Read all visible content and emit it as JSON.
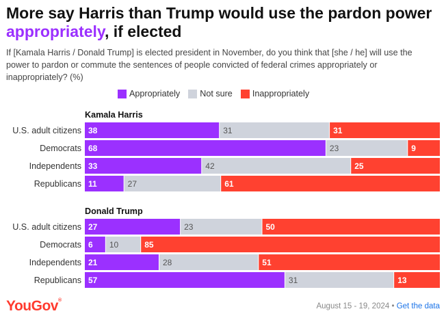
{
  "title": {
    "part1": "More say Harris than Trump would use the pardon power ",
    "highlight": "appropriately",
    "part2": ", if elected"
  },
  "subtitle": "If [Kamala Harris / Donald Trump] is elected president in November, do you think that [she / he] will use the power to pardon or commute the sentences of people convicted of federal crimes appropriately or inappropriately? (%)",
  "footer": {
    "brand": "YouGov",
    "date": "August 15 - 19, 2024",
    "separator": "•",
    "link": "Get the data"
  },
  "chart_data": {
    "type": "bar",
    "orientation": "horizontal",
    "stacked": true,
    "legend": [
      "Appropriately",
      "Not sure",
      "Inappropriately"
    ],
    "colors": [
      "#9b30ff",
      "#cfd3dc",
      "#ff4130"
    ],
    "label_colors": [
      "#ffffff",
      "#555555",
      "#ffffff"
    ],
    "xlim": [
      0,
      100
    ],
    "groups": [
      {
        "name": "Kamala Harris",
        "rows": [
          {
            "category": "U.S. adult citizens",
            "values": [
              38,
              31,
              31
            ]
          },
          {
            "category": "Democrats",
            "values": [
              68,
              23,
              9
            ]
          },
          {
            "category": "Independents",
            "values": [
              33,
              42,
              25
            ]
          },
          {
            "category": "Republicans",
            "values": [
              11,
              27,
              61
            ]
          }
        ]
      },
      {
        "name": "Donald Trump",
        "rows": [
          {
            "category": "U.S. adult citizens",
            "values": [
              27,
              23,
              50
            ]
          },
          {
            "category": "Democrats",
            "values": [
              6,
              10,
              85
            ]
          },
          {
            "category": "Independents",
            "values": [
              21,
              28,
              51
            ]
          },
          {
            "category": "Republicans",
            "values": [
              57,
              31,
              13
            ]
          }
        ]
      }
    ]
  }
}
